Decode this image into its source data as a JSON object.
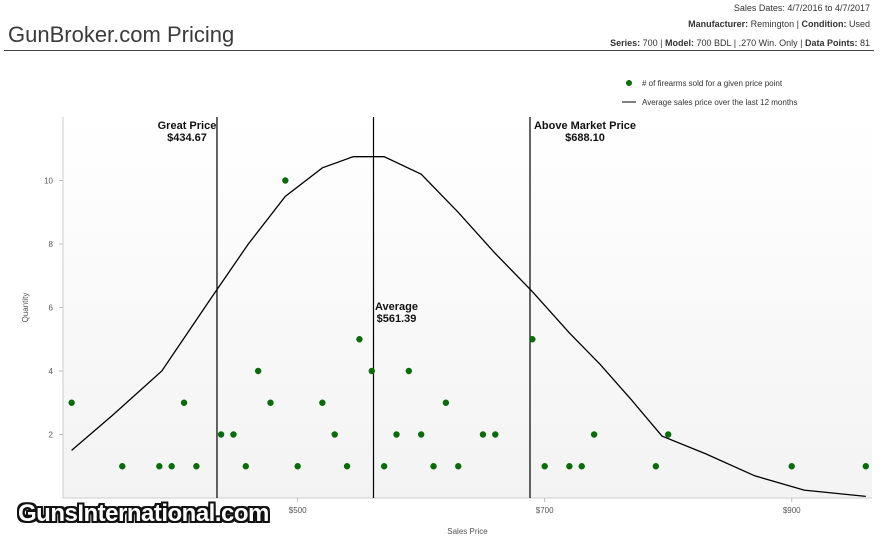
{
  "header": {
    "title": "GunBroker.com Pricing",
    "sales_dates": "Sales Dates: 4/7/2016 to 4/7/2017",
    "manufacturer_label": "Manufacturer:",
    "manufacturer": "Remington",
    "condition_label": "Condition:",
    "condition": "Used",
    "series_label": "Series:",
    "series": "700",
    "model_label": "Model:",
    "model": "700 BDL",
    "caliber": ".270 Win. Only",
    "datapoints_label": "Data Points:",
    "datapoints": "81"
  },
  "legend": {
    "dots_label": "# of firearms sold for a given price point",
    "line_label": "Average sales price over the last 12 months",
    "dot_color": "#0a6b0a",
    "line_color": "#000000"
  },
  "chart_data": {
    "type": "scatter",
    "xlabel": "Sales Price",
    "ylabel": "Quantity",
    "x_ticks": [
      "$500",
      "$700",
      "$900"
    ],
    "x_tick_values": [
      500,
      700,
      900
    ],
    "y_ticks": [
      "2",
      "4",
      "6",
      "8",
      "10"
    ],
    "y_tick_values": [
      2,
      4,
      6,
      8,
      10
    ],
    "xlim": [
      310,
      965
    ],
    "ylim": [
      0,
      12
    ],
    "points": [
      {
        "x": 317,
        "y": 3
      },
      {
        "x": 358,
        "y": 1
      },
      {
        "x": 388,
        "y": 1
      },
      {
        "x": 398,
        "y": 1
      },
      {
        "x": 408,
        "y": 3
      },
      {
        "x": 418,
        "y": 1
      },
      {
        "x": 438,
        "y": 2
      },
      {
        "x": 448,
        "y": 2
      },
      {
        "x": 458,
        "y": 1
      },
      {
        "x": 468,
        "y": 4
      },
      {
        "x": 478,
        "y": 3
      },
      {
        "x": 490,
        "y": 10
      },
      {
        "x": 500,
        "y": 1
      },
      {
        "x": 520,
        "y": 3
      },
      {
        "x": 530,
        "y": 2
      },
      {
        "x": 540,
        "y": 1
      },
      {
        "x": 550,
        "y": 5
      },
      {
        "x": 560,
        "y": 4
      },
      {
        "x": 570,
        "y": 1
      },
      {
        "x": 580,
        "y": 2
      },
      {
        "x": 590,
        "y": 4
      },
      {
        "x": 600,
        "y": 2
      },
      {
        "x": 610,
        "y": 1
      },
      {
        "x": 620,
        "y": 3
      },
      {
        "x": 630,
        "y": 1
      },
      {
        "x": 650,
        "y": 2
      },
      {
        "x": 660,
        "y": 2
      },
      {
        "x": 690,
        "y": 5
      },
      {
        "x": 700,
        "y": 1
      },
      {
        "x": 720,
        "y": 1
      },
      {
        "x": 730,
        "y": 1
      },
      {
        "x": 740,
        "y": 2
      },
      {
        "x": 790,
        "y": 1
      },
      {
        "x": 800,
        "y": 2
      },
      {
        "x": 900,
        "y": 1
      },
      {
        "x": 960,
        "y": 1
      }
    ],
    "curve": [
      [
        317,
        1.5
      ],
      [
        350,
        2.6
      ],
      [
        390,
        4.0
      ],
      [
        430,
        6.3
      ],
      [
        460,
        8.0
      ],
      [
        490,
        9.5
      ],
      [
        520,
        10.4
      ],
      [
        545,
        10.75
      ],
      [
        570,
        10.75
      ],
      [
        600,
        10.2
      ],
      [
        630,
        9.0
      ],
      [
        660,
        7.7
      ],
      [
        690,
        6.5
      ],
      [
        720,
        5.2
      ],
      [
        745,
        4.2
      ],
      [
        770,
        3.1
      ],
      [
        795,
        1.95
      ],
      [
        830,
        1.4
      ],
      [
        870,
        0.7
      ],
      [
        910,
        0.25
      ],
      [
        960,
        0.05
      ]
    ],
    "markers": [
      {
        "name": "great",
        "label": "Great Price",
        "value_label": "$434.67",
        "x": 434.67
      },
      {
        "name": "average",
        "label": "Average",
        "value_label": "$561.39",
        "x": 561.39
      },
      {
        "name": "above",
        "label": "Above Market Price",
        "value_label": "$688.10",
        "x": 688.1
      }
    ]
  },
  "watermark": "GunsInternational.com"
}
